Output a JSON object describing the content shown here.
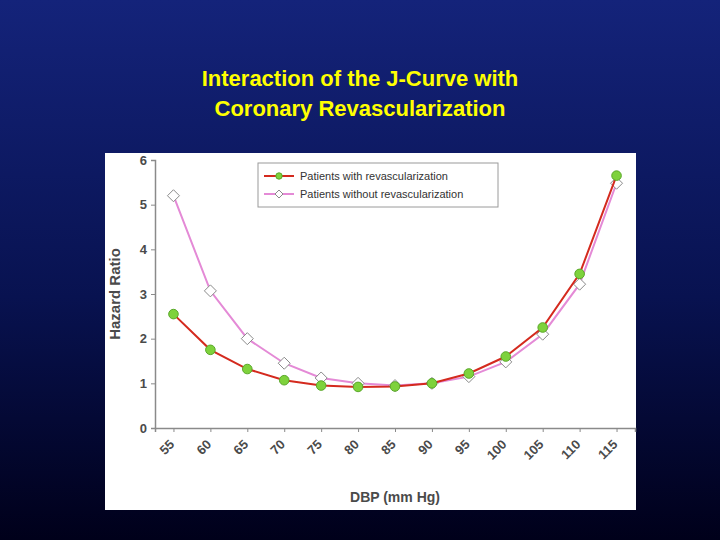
{
  "chart_data": {
    "type": "line",
    "title": "Interaction of the J-Curve with Coronary Revascularization",
    "x_label": "DBP (mm Hg)",
    "y_label": "Hazard Ratio",
    "categories": [
      "55",
      "60",
      "65",
      "70",
      "75",
      "80",
      "85",
      "90",
      "95",
      "100",
      "105",
      "110",
      "115"
    ],
    "series": [
      {
        "name": "Patients with revascularization",
        "color": "#d42a1e",
        "marker": "circle",
        "values": [
          2.55,
          1.75,
          1.32,
          1.07,
          0.95,
          0.92,
          0.93,
          1.0,
          1.22,
          1.6,
          2.25,
          3.45,
          5.65
        ]
      },
      {
        "name": "Patients without revascularization",
        "color": "#e48ad6",
        "marker": "diamond",
        "values": [
          5.2,
          3.07,
          2.0,
          1.45,
          1.12,
          1.0,
          0.95,
          1.0,
          1.15,
          1.48,
          2.1,
          3.22,
          5.48
        ]
      }
    ],
    "ylim": [
      0,
      6
    ],
    "yticks": [
      0,
      1,
      2,
      3,
      4,
      5,
      6
    ],
    "grid": false,
    "legend": "top"
  }
}
